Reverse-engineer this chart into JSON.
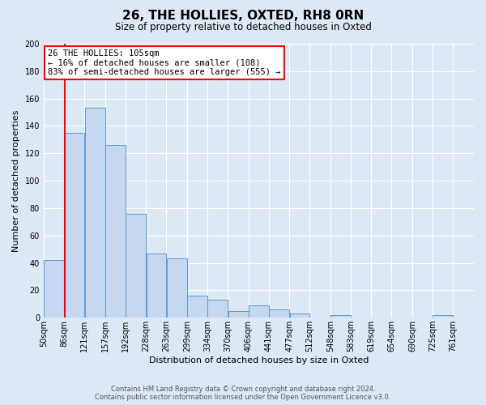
{
  "title": "26, THE HOLLIES, OXTED, RH8 0RN",
  "subtitle": "Size of property relative to detached houses in Oxted",
  "xlabel": "Distribution of detached houses by size in Oxted",
  "ylabel": "Number of detached properties",
  "footer_line1": "Contains HM Land Registry data © Crown copyright and database right 2024.",
  "footer_line2": "Contains public sector information licensed under the Open Government Licence v3.0.",
  "bin_labels": [
    "50sqm",
    "86sqm",
    "121sqm",
    "157sqm",
    "192sqm",
    "228sqm",
    "263sqm",
    "299sqm",
    "334sqm",
    "370sqm",
    "406sqm",
    "441sqm",
    "477sqm",
    "512sqm",
    "548sqm",
    "583sqm",
    "619sqm",
    "654sqm",
    "690sqm",
    "725sqm",
    "761sqm"
  ],
  "bar_heights": [
    42,
    135,
    153,
    126,
    76,
    47,
    43,
    16,
    13,
    5,
    9,
    6,
    3,
    0,
    2,
    0,
    0,
    0,
    0,
    2,
    0
  ],
  "bar_color": "#c5d8f0",
  "bar_edge_color": "#5b9bd5",
  "background_color": "#dce9f5",
  "annotation_text": "26 THE HOLLIES: 105sqm\n← 16% of detached houses are smaller (108)\n83% of semi-detached houses are larger (555) →",
  "annotation_box_color": "white",
  "annotation_border_color": "red",
  "vline_color": "red",
  "vline_x_bin": 1,
  "ylim": [
    0,
    200
  ],
  "yticks": [
    0,
    20,
    40,
    60,
    80,
    100,
    120,
    140,
    160,
    180,
    200
  ],
  "bin_edges_sqm": [
    50,
    86,
    121,
    157,
    192,
    228,
    263,
    299,
    334,
    370,
    406,
    441,
    477,
    512,
    548,
    583,
    619,
    654,
    690,
    725,
    761,
    797
  ],
  "title_fontsize": 11,
  "subtitle_fontsize": 8.5,
  "ylabel_fontsize": 8,
  "xlabel_fontsize": 8,
  "tick_fontsize": 7,
  "annotation_fontsize": 7.5,
  "footer_fontsize": 6
}
